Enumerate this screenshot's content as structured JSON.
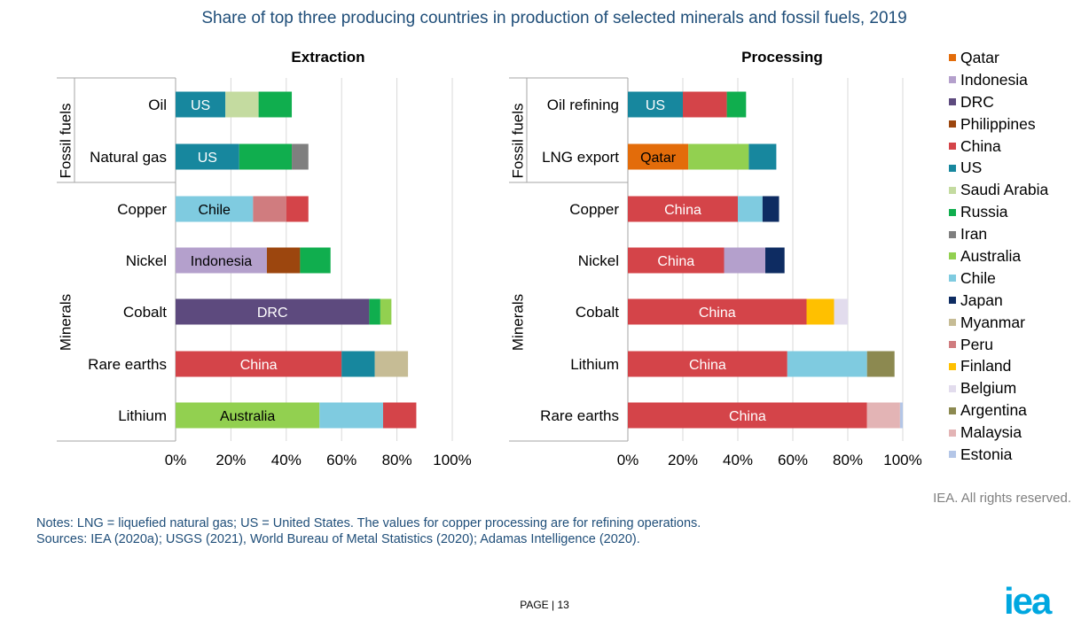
{
  "title": "Share of top three producing countries in production of selected minerals and fossil fuels, 2019",
  "colors": {
    "Qatar": "#e36c0a",
    "Indonesia": "#b4a0cc",
    "DRC": "#5d4a7e",
    "Philippines": "#9c460e",
    "China": "#d44449",
    "US": "#17879e",
    "Saudi Arabia": "#c4dba0",
    "Russia": "#10ae4e",
    "Iran": "#7f7f7f",
    "Australia": "#92d050",
    "Chile": "#7fcbe0",
    "Japan": "#0e2c62",
    "Myanmar": "#c6bc95",
    "Peru": "#d07c7f",
    "Finland": "#ffc000",
    "Belgium": "#e2dced",
    "Argentina": "#8c8950",
    "Malaysia": "#e3b4b5",
    "Estonia": "#b4c6e7"
  },
  "legend": [
    "Qatar",
    "Indonesia",
    "DRC",
    "Philippines",
    "China",
    "US",
    "Saudi Arabia",
    "Russia",
    "Iran",
    "Australia",
    "Chile",
    "Japan",
    "Myanmar",
    "Peru",
    "Finland",
    "Belgium",
    "Argentina",
    "Malaysia",
    "Estonia"
  ],
  "chart_data": [
    {
      "type": "bar",
      "orientation": "horizontal",
      "stacked": true,
      "title": "Extraction",
      "groups": [
        {
          "label": "Fossil fuels",
          "rows": [
            "Oil",
            "Natural gas"
          ]
        },
        {
          "label": "Minerals",
          "rows": [
            "Copper",
            "Nickel",
            "Cobalt",
            "Rare earths",
            "Lithium"
          ]
        }
      ],
      "categories": [
        "Oil",
        "Natural gas",
        "Copper",
        "Nickel",
        "Cobalt",
        "Rare earths",
        "Lithium"
      ],
      "bars": [
        {
          "category": "Oil",
          "segments": [
            {
              "country": "US",
              "value": 18,
              "label": "US"
            },
            {
              "country": "Saudi Arabia",
              "value": 12
            },
            {
              "country": "Russia",
              "value": 12
            }
          ]
        },
        {
          "category": "Natural gas",
          "segments": [
            {
              "country": "US",
              "value": 23,
              "label": "US"
            },
            {
              "country": "Russia",
              "value": 19
            },
            {
              "country": "Iran",
              "value": 6
            }
          ]
        },
        {
          "category": "Copper",
          "segments": [
            {
              "country": "Chile",
              "value": 28,
              "label": "Chile"
            },
            {
              "country": "Peru",
              "value": 12
            },
            {
              "country": "China",
              "value": 8
            }
          ]
        },
        {
          "category": "Nickel",
          "segments": [
            {
              "country": "Indonesia",
              "value": 33,
              "label": "Indonesia"
            },
            {
              "country": "Philippines",
              "value": 12
            },
            {
              "country": "Russia",
              "value": 11
            }
          ]
        },
        {
          "category": "Cobalt",
          "segments": [
            {
              "country": "DRC",
              "value": 70,
              "label": "DRC"
            },
            {
              "country": "Russia",
              "value": 4
            },
            {
              "country": "Australia",
              "value": 4
            }
          ]
        },
        {
          "category": "Rare earths",
          "segments": [
            {
              "country": "China",
              "value": 60,
              "label": "China"
            },
            {
              "country": "US",
              "value": 12
            },
            {
              "country": "Myanmar",
              "value": 12
            }
          ]
        },
        {
          "category": "Lithium",
          "segments": [
            {
              "country": "Australia",
              "value": 52,
              "label": "Australia"
            },
            {
              "country": "Chile",
              "value": 23
            },
            {
              "country": "China",
              "value": 12
            }
          ]
        }
      ],
      "xlim": [
        0,
        100
      ],
      "xticks": [
        "0%",
        "20%",
        "40%",
        "60%",
        "80%",
        "100%"
      ],
      "grid": true
    },
    {
      "type": "bar",
      "orientation": "horizontal",
      "stacked": true,
      "title": "Processing",
      "groups": [
        {
          "label": "Fossil fuels",
          "rows": [
            "Oil refining",
            "LNG export"
          ]
        },
        {
          "label": "Minerals",
          "rows": [
            "Copper",
            "Nickel",
            "Cobalt",
            "Lithium",
            "Rare earths"
          ]
        }
      ],
      "categories": [
        "Oil refining",
        "LNG export",
        "Copper",
        "Nickel",
        "Cobalt",
        "Lithium",
        "Rare earths"
      ],
      "bars": [
        {
          "category": "Oil refining",
          "segments": [
            {
              "country": "US",
              "value": 20,
              "label": "US"
            },
            {
              "country": "China",
              "value": 16
            },
            {
              "country": "Russia",
              "value": 7
            }
          ]
        },
        {
          "category": "LNG export",
          "segments": [
            {
              "country": "Qatar",
              "value": 22,
              "label": "Qatar"
            },
            {
              "country": "Australia",
              "value": 22
            },
            {
              "country": "US",
              "value": 10
            }
          ]
        },
        {
          "category": "Copper",
          "segments": [
            {
              "country": "China",
              "value": 40,
              "label": "China"
            },
            {
              "country": "Chile",
              "value": 9
            },
            {
              "country": "Japan",
              "value": 6
            }
          ]
        },
        {
          "category": "Nickel",
          "segments": [
            {
              "country": "China",
              "value": 35,
              "label": "China"
            },
            {
              "country": "Indonesia",
              "value": 15
            },
            {
              "country": "Japan",
              "value": 7
            }
          ]
        },
        {
          "category": "Cobalt",
          "segments": [
            {
              "country": "China",
              "value": 65,
              "label": "China"
            },
            {
              "country": "Finland",
              "value": 10
            },
            {
              "country": "Belgium",
              "value": 5
            }
          ]
        },
        {
          "category": "Lithium",
          "segments": [
            {
              "country": "China",
              "value": 58,
              "label": "China"
            },
            {
              "country": "Chile",
              "value": 29
            },
            {
              "country": "Argentina",
              "value": 10
            }
          ]
        },
        {
          "category": "Rare earths",
          "segments": [
            {
              "country": "China",
              "value": 87,
              "label": "China"
            },
            {
              "country": "Malaysia",
              "value": 12
            },
            {
              "country": "Estonia",
              "value": 1
            }
          ]
        }
      ],
      "xlim": [
        0,
        100
      ],
      "xticks": [
        "0%",
        "20%",
        "40%",
        "60%",
        "80%",
        "100%"
      ],
      "grid": true
    }
  ],
  "rights": "IEA. All rights reserved.",
  "notes": [
    "Notes: LNG = liquefied natural gas; US = United States. The values for copper processing are for refining operations.",
    "Sources: IEA (2020a); USGS (2021), World Bureau of Metal Statistics (2020); Adamas Intelligence (2020)."
  ],
  "page": {
    "prefix": "P",
    "word": "AGE",
    "sep": " | ",
    "number": "13"
  },
  "logo": "iea"
}
